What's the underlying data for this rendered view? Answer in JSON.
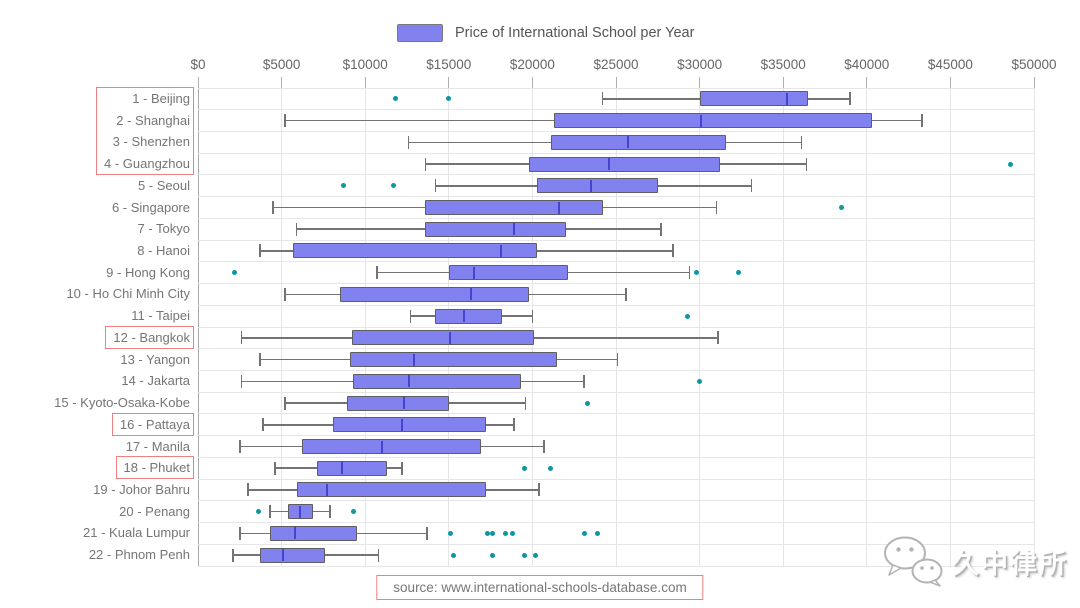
{
  "legend": {
    "label": "Price of International School per Year"
  },
  "source_note": "source: www.international-schools-database.com",
  "watermark": {
    "icon": "wechat-logo",
    "text": "久中律所"
  },
  "colors": {
    "box_fill": "#8181f0",
    "box_border": "#5f5f5f",
    "median": "#4444cf",
    "whisker": "#737373",
    "outlier": "#0b98a1",
    "gridline": "#e6e6e6",
    "axis_line": "#aaaaaa",
    "tick": "#b0b0b0",
    "tick_label": "#666666",
    "label": "#757575",
    "highlight_border": "#f08080"
  },
  "chart_data": {
    "type": "boxplot",
    "orientation": "horizontal",
    "title": "Price of International School per Year",
    "legend_position": "top",
    "grid": true,
    "x_axis": {
      "min": 0,
      "max": 50000,
      "tick_values": [
        0,
        5000,
        10000,
        15000,
        20000,
        25000,
        30000,
        35000,
        40000,
        45000,
        50000
      ],
      "tick_labels": [
        "$0",
        "$5000",
        "$10000",
        "$15000",
        "$20000",
        "$25000",
        "$30000",
        "$35000",
        "$40000",
        "$45000",
        "$50000"
      ]
    },
    "highlights": [
      {
        "from": 0,
        "to": 3
      },
      {
        "from": 11,
        "to": 11
      },
      {
        "from": 15,
        "to": 15
      },
      {
        "from": 17,
        "to": 17
      }
    ],
    "cities": [
      {
        "label": "1 - Beijing",
        "min": 24200,
        "q1": 30000,
        "median": 35200,
        "q3": 36500,
        "max": 39000,
        "outliers": [
          11800,
          15000
        ]
      },
      {
        "label": "2 - Shanghai",
        "min": 5200,
        "q1": 21300,
        "median": 30100,
        "q3": 40300,
        "max": 43300,
        "outliers": []
      },
      {
        "label": "3 - Shenzhen",
        "min": 12600,
        "q1": 21100,
        "median": 25700,
        "q3": 31600,
        "max": 36100,
        "outliers": []
      },
      {
        "label": "4 - Guangzhou",
        "min": 13600,
        "q1": 19800,
        "median": 24600,
        "q3": 31200,
        "max": 36400,
        "outliers": [
          48600
        ]
      },
      {
        "label": "5 - Seoul",
        "min": 14200,
        "q1": 20300,
        "median": 23500,
        "q3": 27500,
        "max": 33100,
        "outliers": [
          8700,
          11700
        ]
      },
      {
        "label": "6 - Singapore",
        "min": 4500,
        "q1": 13600,
        "median": 21600,
        "q3": 24200,
        "max": 31000,
        "outliers": [
          38500
        ]
      },
      {
        "label": "7 - Tokyo",
        "min": 5900,
        "q1": 13600,
        "median": 18900,
        "q3": 22000,
        "max": 27700,
        "outliers": []
      },
      {
        "label": "8 - Hanoi",
        "min": 3700,
        "q1": 5700,
        "median": 18100,
        "q3": 20300,
        "max": 28400,
        "outliers": []
      },
      {
        "label": "9 - Hong Kong",
        "min": 10700,
        "q1": 15000,
        "median": 16500,
        "q3": 22100,
        "max": 29400,
        "outliers": [
          2200,
          29800,
          32300
        ]
      },
      {
        "label": "10 - Ho Chi Minh City",
        "min": 5200,
        "q1": 8500,
        "median": 16300,
        "q3": 19800,
        "max": 25600,
        "outliers": []
      },
      {
        "label": "11 - Taipei",
        "min": 12700,
        "q1": 14200,
        "median": 15900,
        "q3": 18200,
        "max": 20000,
        "outliers": [
          29300
        ]
      },
      {
        "label": "12 - Bangkok",
        "min": 2600,
        "q1": 9200,
        "median": 15100,
        "q3": 20100,
        "max": 31100,
        "outliers": []
      },
      {
        "label": "13 - Yangon",
        "min": 3700,
        "q1": 9100,
        "median": 12900,
        "q3": 21500,
        "max": 25100,
        "outliers": []
      },
      {
        "label": "14 - Jakarta",
        "min": 2600,
        "q1": 9300,
        "median": 12600,
        "q3": 19300,
        "max": 23100,
        "outliers": [
          30000
        ]
      },
      {
        "label": "15 - Kyoto-Osaka-Kobe",
        "min": 5200,
        "q1": 8900,
        "median": 12300,
        "q3": 15000,
        "max": 19600,
        "outliers": [
          23300
        ]
      },
      {
        "label": "16 - Pattaya",
        "min": 3900,
        "q1": 8100,
        "median": 12200,
        "q3": 17200,
        "max": 18900,
        "outliers": []
      },
      {
        "label": "17 - Manila",
        "min": 2500,
        "q1": 6200,
        "median": 11000,
        "q3": 16900,
        "max": 20700,
        "outliers": []
      },
      {
        "label": "18 - Phuket",
        "min": 4600,
        "q1": 7100,
        "median": 8600,
        "q3": 11300,
        "max": 12200,
        "outliers": [
          19500,
          21100
        ]
      },
      {
        "label": "19 - Johor Bahru",
        "min": 3000,
        "q1": 5900,
        "median": 7700,
        "q3": 17200,
        "max": 20400,
        "outliers": []
      },
      {
        "label": "20 - Penang",
        "min": 4300,
        "q1": 5400,
        "median": 6100,
        "q3": 6900,
        "max": 7900,
        "outliers": [
          3600,
          9300
        ]
      },
      {
        "label": "21 - Kuala Lumpur",
        "min": 2500,
        "q1": 4300,
        "median": 5800,
        "q3": 9500,
        "max": 13700,
        "outliers": [
          15100,
          17300,
          17600,
          18400,
          18800,
          23100,
          23900
        ]
      },
      {
        "label": "22 - Phnom Penh",
        "min": 2100,
        "q1": 3700,
        "median": 5100,
        "q3": 7600,
        "max": 10800,
        "outliers": [
          15300,
          17600,
          19500,
          20200
        ]
      }
    ]
  }
}
